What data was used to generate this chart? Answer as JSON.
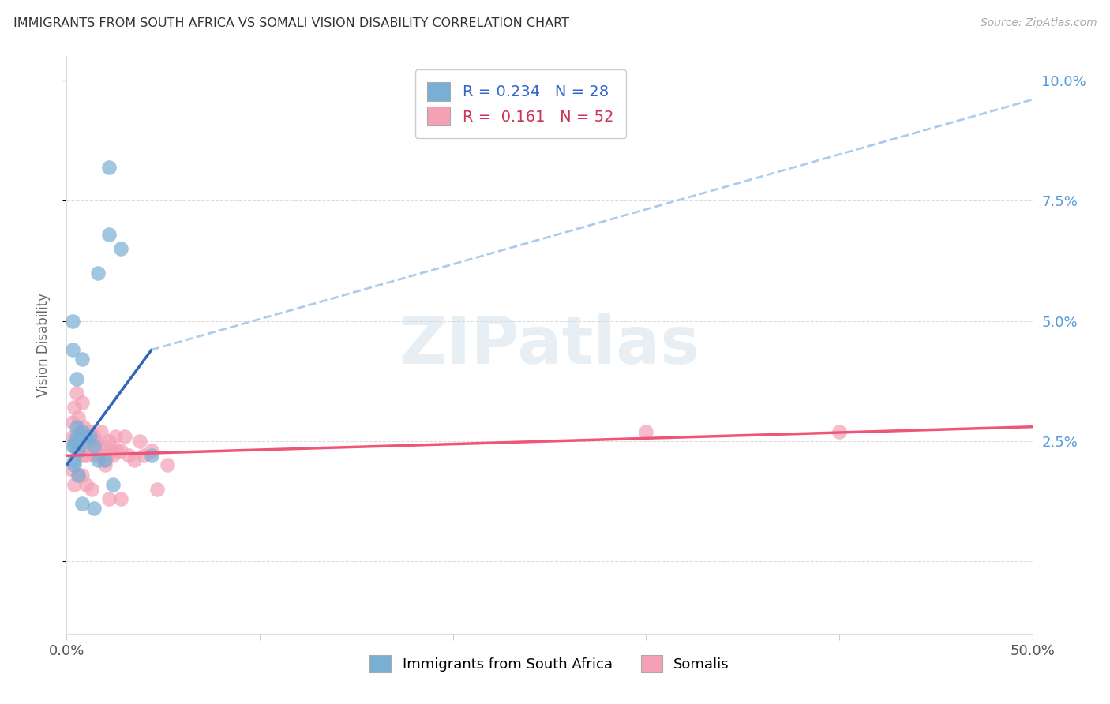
{
  "title": "IMMIGRANTS FROM SOUTH AFRICA VS SOMALI VISION DISABILITY CORRELATION CHART",
  "source": "Source: ZipAtlas.com",
  "ylabel": "Vision Disability",
  "xmin": 0.0,
  "xmax": 0.5,
  "ymin": -0.015,
  "ymax": 0.105,
  "ytick_vals": [
    0.0,
    0.025,
    0.05,
    0.075,
    0.1
  ],
  "ytick_labels": [
    "",
    "2.5%",
    "5.0%",
    "7.5%",
    "10.0%"
  ],
  "xtick_vals": [
    0.0,
    0.1,
    0.2,
    0.3,
    0.4,
    0.5
  ],
  "xtick_labels": [
    "0.0%",
    "",
    "",
    "",
    "",
    "50.0%"
  ],
  "legend_r_blue": "0.234",
  "legend_n_blue": "28",
  "legend_r_pink": "0.161",
  "legend_n_pink": "52",
  "blue_color": "#7AAFD4",
  "pink_color": "#F4A0B5",
  "blue_line_color": "#3366BB",
  "pink_line_color": "#EE5577",
  "dashed_line_color": "#AACCEE",
  "watermark_color": "#CCDDE8",
  "blue_scatter_x": [
    0.022,
    0.022,
    0.028,
    0.016,
    0.003,
    0.003,
    0.008,
    0.005,
    0.005,
    0.008,
    0.01,
    0.012,
    0.005,
    0.005,
    0.01,
    0.014,
    0.004,
    0.003,
    0.006,
    0.044,
    0.004,
    0.016,
    0.02,
    0.004,
    0.006,
    0.024,
    0.008,
    0.014
  ],
  "blue_scatter_y": [
    0.082,
    0.068,
    0.065,
    0.06,
    0.05,
    0.044,
    0.042,
    0.038,
    0.028,
    0.027,
    0.026,
    0.026,
    0.026,
    0.025,
    0.025,
    0.024,
    0.024,
    0.024,
    0.023,
    0.022,
    0.021,
    0.021,
    0.021,
    0.02,
    0.018,
    0.016,
    0.012,
    0.011
  ],
  "pink_scatter_x": [
    0.003,
    0.003,
    0.004,
    0.004,
    0.005,
    0.005,
    0.006,
    0.006,
    0.007,
    0.008,
    0.008,
    0.009,
    0.01,
    0.01,
    0.011,
    0.012,
    0.013,
    0.014,
    0.014,
    0.015,
    0.016,
    0.017,
    0.018,
    0.018,
    0.019,
    0.02,
    0.02,
    0.021,
    0.022,
    0.023,
    0.024,
    0.025,
    0.026,
    0.028,
    0.03,
    0.032,
    0.035,
    0.038,
    0.04,
    0.044,
    0.047,
    0.052,
    0.3,
    0.4,
    0.003,
    0.004,
    0.006,
    0.008,
    0.01,
    0.013,
    0.022,
    0.028
  ],
  "pink_scatter_y": [
    0.029,
    0.026,
    0.032,
    0.025,
    0.035,
    0.025,
    0.03,
    0.023,
    0.027,
    0.033,
    0.022,
    0.028,
    0.026,
    0.022,
    0.024,
    0.027,
    0.023,
    0.026,
    0.022,
    0.025,
    0.024,
    0.022,
    0.027,
    0.022,
    0.021,
    0.024,
    0.02,
    0.022,
    0.025,
    0.023,
    0.022,
    0.026,
    0.023,
    0.023,
    0.026,
    0.022,
    0.021,
    0.025,
    0.022,
    0.023,
    0.015,
    0.02,
    0.027,
    0.027,
    0.019,
    0.016,
    0.018,
    0.018,
    0.016,
    0.015,
    0.013,
    0.013
  ],
  "blue_line_x_start": 0.0,
  "blue_line_x_solid_end": 0.044,
  "blue_line_y_start": 0.02,
  "blue_line_y_solid_end": 0.044,
  "blue_line_y_end": 0.096,
  "pink_line_y_start": 0.022,
  "pink_line_y_end": 0.028
}
